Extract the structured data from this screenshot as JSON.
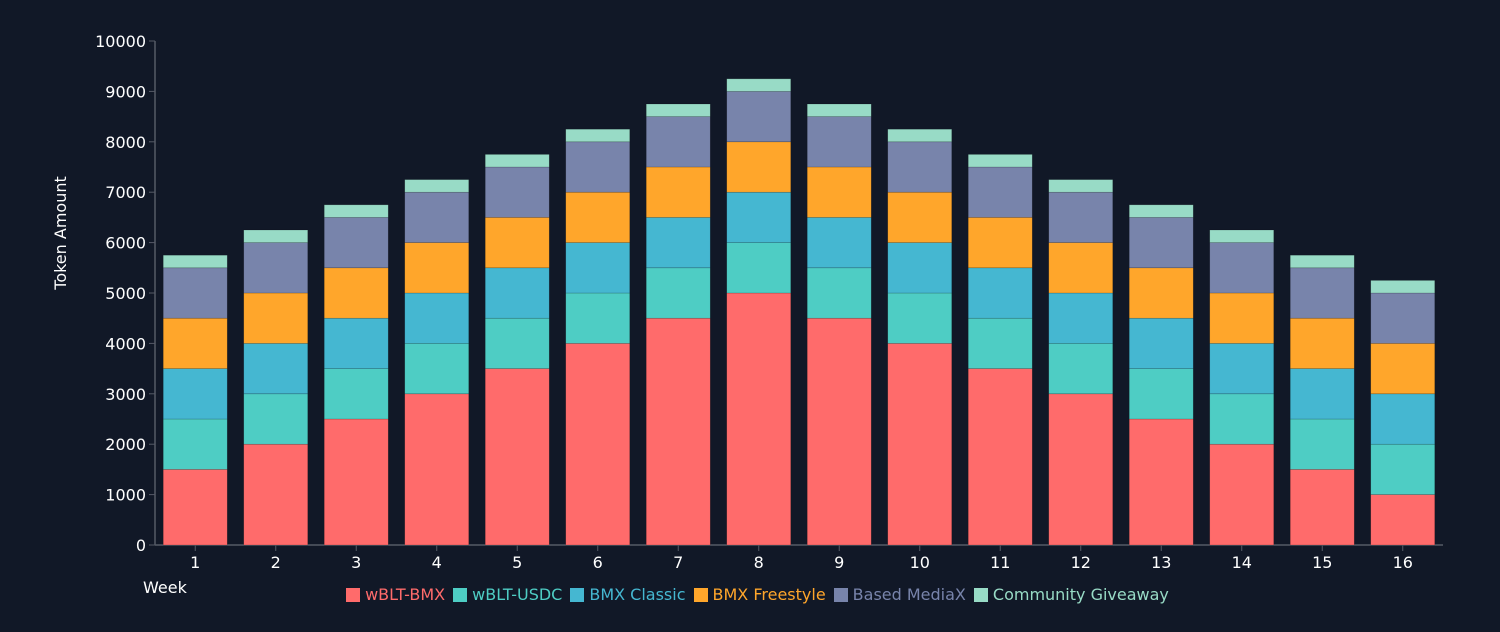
{
  "chart_data": {
    "type": "bar",
    "stacked": true,
    "xlabel": "Week",
    "ylabel": "Token Amount",
    "ylim": [
      0,
      10000
    ],
    "yticks": [
      0,
      1000,
      2000,
      3000,
      4000,
      5000,
      6000,
      7000,
      8000,
      9000,
      10000
    ],
    "grid": false,
    "legend": "bottom",
    "categories": [
      "1",
      "2",
      "3",
      "4",
      "5",
      "6",
      "7",
      "8",
      "9",
      "10",
      "11",
      "12",
      "13",
      "14",
      "15",
      "16"
    ],
    "series": [
      {
        "name": "wBLT-BMX",
        "color": "#ff6b6b",
        "values": [
          1500,
          2000,
          2500,
          3000,
          3500,
          4000,
          4500,
          5000,
          4500,
          4000,
          3500,
          3000,
          2500,
          2000,
          1500,
          1000
        ]
      },
      {
        "name": "wBLT-USDC",
        "color": "#4ecdc4",
        "values": [
          1000,
          1000,
          1000,
          1000,
          1000,
          1000,
          1000,
          1000,
          1000,
          1000,
          1000,
          1000,
          1000,
          1000,
          1000,
          1000
        ]
      },
      {
        "name": "BMX Classic",
        "color": "#45b7d1",
        "values": [
          1000,
          1000,
          1000,
          1000,
          1000,
          1000,
          1000,
          1000,
          1000,
          1000,
          1000,
          1000,
          1000,
          1000,
          1000,
          1000
        ]
      },
      {
        "name": "BMX Freestyle",
        "color": "#ffa62b",
        "values": [
          1000,
          1000,
          1000,
          1000,
          1000,
          1000,
          1000,
          1000,
          1000,
          1000,
          1000,
          1000,
          1000,
          1000,
          1000,
          1000
        ]
      },
      {
        "name": "Based MediaX",
        "color": "#7884ab",
        "values": [
          1000,
          1000,
          1000,
          1000,
          1000,
          1000,
          1000,
          1000,
          1000,
          1000,
          1000,
          1000,
          1000,
          1000,
          1000,
          1000
        ]
      },
      {
        "name": "Community Giveaway",
        "color": "#98dbc6",
        "values": [
          250,
          250,
          250,
          250,
          250,
          250,
          250,
          250,
          250,
          250,
          250,
          250,
          250,
          250,
          250,
          250
        ]
      }
    ]
  },
  "colors": {
    "background": "#111827",
    "text": "#ffffff",
    "axis": "#555a66"
  }
}
